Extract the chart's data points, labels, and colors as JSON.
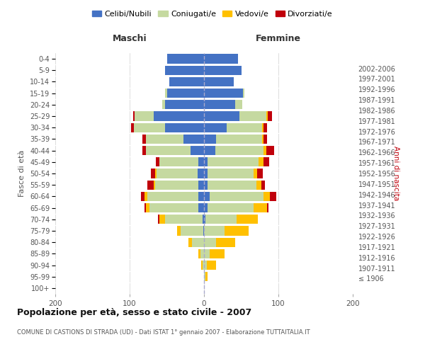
{
  "age_groups": [
    "100+",
    "95-99",
    "90-94",
    "85-89",
    "80-84",
    "75-79",
    "70-74",
    "65-69",
    "60-64",
    "55-59",
    "50-54",
    "45-49",
    "40-44",
    "35-39",
    "30-34",
    "25-29",
    "20-24",
    "15-19",
    "10-14",
    "5-9",
    "0-4"
  ],
  "birth_years": [
    "≤ 1906",
    "1907-1911",
    "1912-1916",
    "1917-1921",
    "1922-1926",
    "1927-1931",
    "1932-1936",
    "1937-1941",
    "1942-1946",
    "1947-1951",
    "1952-1956",
    "1957-1961",
    "1962-1966",
    "1967-1971",
    "1972-1976",
    "1977-1981",
    "1982-1986",
    "1987-1991",
    "1992-1996",
    "1997-2001",
    "2002-2006"
  ],
  "males": {
    "celibi": [
      0,
      0,
      0,
      0,
      0,
      1,
      2,
      8,
      8,
      8,
      9,
      8,
      18,
      28,
      52,
      68,
      52,
      50,
      47,
      52,
      50
    ],
    "coniugati": [
      0,
      0,
      2,
      5,
      16,
      30,
      50,
      65,
      68,
      58,
      55,
      52,
      60,
      50,
      42,
      25,
      4,
      2,
      0,
      0,
      0
    ],
    "vedovi": [
      0,
      0,
      2,
      3,
      5,
      5,
      8,
      5,
      4,
      2,
      2,
      0,
      0,
      0,
      0,
      0,
      0,
      0,
      0,
      0,
      0
    ],
    "divorziati": [
      0,
      0,
      0,
      0,
      0,
      0,
      2,
      2,
      5,
      8,
      5,
      5,
      5,
      5,
      4,
      2,
      0,
      0,
      0,
      0,
      0
    ]
  },
  "females": {
    "nubili": [
      0,
      0,
      0,
      0,
      0,
      0,
      2,
      5,
      8,
      5,
      5,
      5,
      15,
      16,
      30,
      48,
      42,
      52,
      40,
      50,
      46
    ],
    "coniugate": [
      0,
      2,
      4,
      8,
      16,
      28,
      42,
      62,
      72,
      65,
      62,
      68,
      65,
      62,
      48,
      36,
      9,
      2,
      0,
      0,
      0
    ],
    "vedove": [
      0,
      3,
      12,
      20,
      26,
      32,
      28,
      18,
      9,
      7,
      4,
      7,
      4,
      2,
      2,
      2,
      0,
      0,
      0,
      0,
      0
    ],
    "divorziate": [
      0,
      0,
      0,
      0,
      0,
      0,
      0,
      2,
      8,
      5,
      8,
      8,
      10,
      5,
      5,
      5,
      0,
      0,
      0,
      0,
      0
    ]
  },
  "colors": {
    "celibi": "#4472c4",
    "coniugati": "#c5d9a0",
    "vedovi": "#ffc000",
    "divorziati": "#c0000b"
  },
  "title": "Popolazione per età, sesso e stato civile - 2007",
  "subtitle": "COMUNE DI CASTIONS DI STRADA (UD) - Dati ISTAT 1° gennaio 2007 - Elaborazione TUTTAITALIA.IT",
  "xlabel_left": "Maschi",
  "xlabel_right": "Femmine",
  "ylabel_left": "Fasce di età",
  "ylabel_right": "Anni di nascita",
  "legend_labels": [
    "Celibi/Nubili",
    "Coniugati/e",
    "Vedovi/e",
    "Divorziati/e"
  ],
  "xlim": 200,
  "background_color": "#ffffff",
  "grid_color": "#d0d0d0"
}
